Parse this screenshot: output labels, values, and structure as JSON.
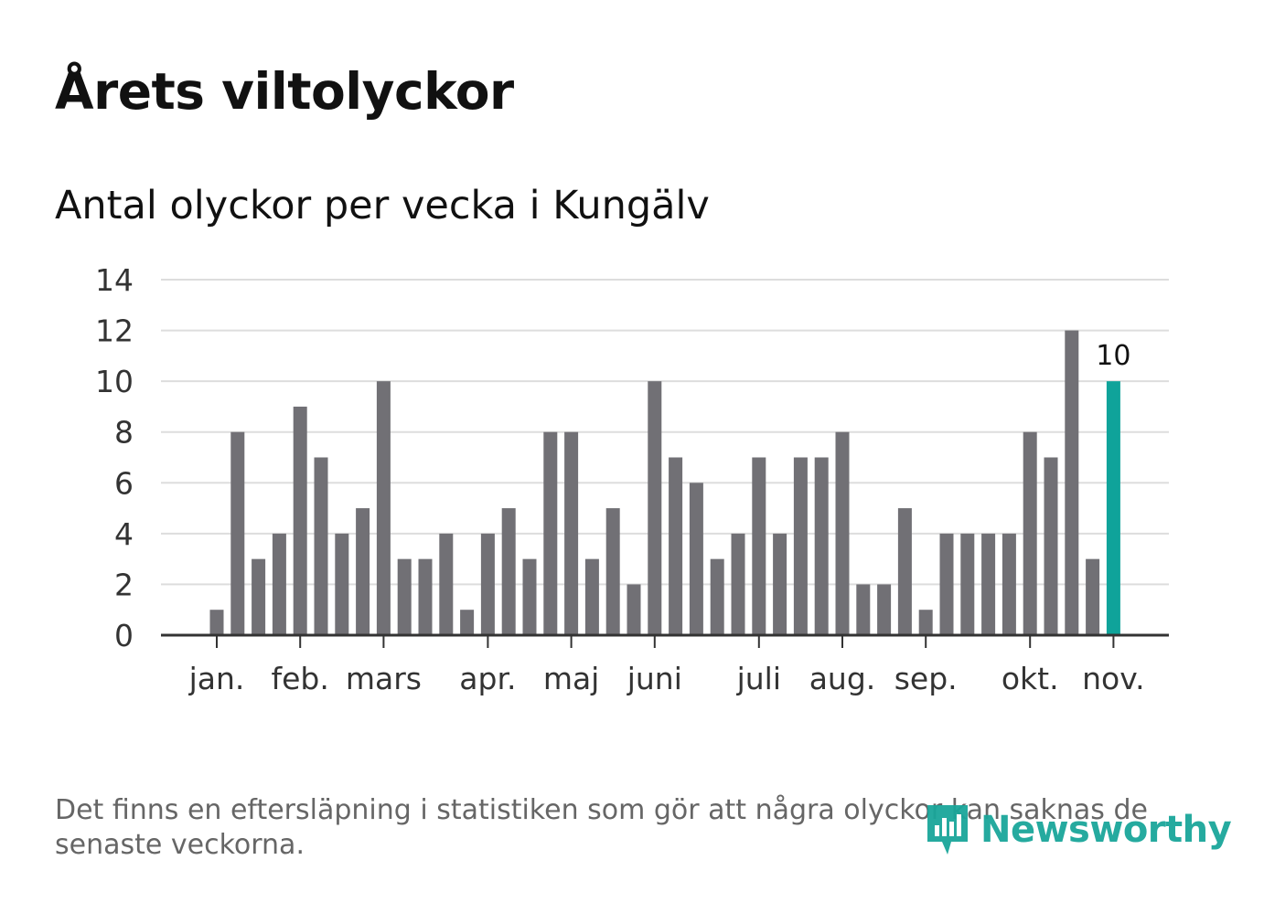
{
  "title": "Årets viltolyckor",
  "subtitle": "Antal olyckor per vecka i Kungälv",
  "footnote": "Det finns en eftersläpning i statistiken som gör att några olyckor kan saknas de senaste veckorna.",
  "brand": {
    "name": "Newsworthy",
    "icon": "newsworthy-logo-icon",
    "color": "#1aa69a"
  },
  "colors": {
    "bar": "#717075",
    "highlight": "#0fa39a",
    "grid": "#dddddd",
    "axis": "#333333",
    "tick_text": "#333333"
  },
  "chart_data": {
    "type": "bar",
    "title": "Antal olyckor per vecka i Kungälv",
    "xlabel": "",
    "ylabel": "",
    "ylim": [
      0,
      14
    ],
    "yticks": [
      0,
      2,
      4,
      6,
      8,
      10,
      12,
      14
    ],
    "grid": true,
    "values": [
      1,
      8,
      3,
      4,
      9,
      7,
      4,
      5,
      10,
      3,
      3,
      4,
      1,
      4,
      5,
      3,
      8,
      8,
      3,
      5,
      2,
      10,
      7,
      6,
      3,
      4,
      7,
      4,
      7,
      7,
      8,
      2,
      2,
      5,
      1,
      4,
      4,
      4,
      4,
      8,
      7,
      12,
      3,
      10
    ],
    "highlight_index": 43,
    "highlight_label": "10",
    "month_labels": [
      {
        "label": "jan.",
        "index": 0
      },
      {
        "label": "feb.",
        "index": 4
      },
      {
        "label": "mars",
        "index": 8
      },
      {
        "label": "apr.",
        "index": 13
      },
      {
        "label": "maj",
        "index": 17
      },
      {
        "label": "juni",
        "index": 21
      },
      {
        "label": "juli",
        "index": 26
      },
      {
        "label": "aug.",
        "index": 30
      },
      {
        "label": "sep.",
        "index": 34
      },
      {
        "label": "okt.",
        "index": 39
      },
      {
        "label": "nov.",
        "index": 43
      }
    ]
  }
}
